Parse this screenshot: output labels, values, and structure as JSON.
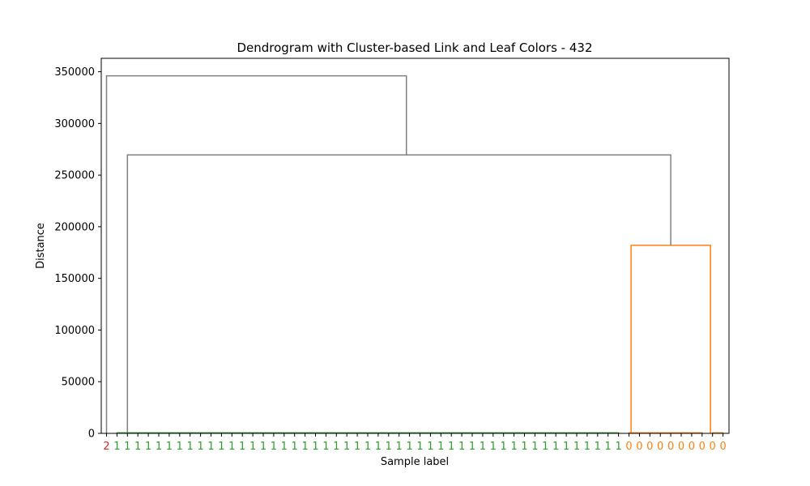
{
  "chart_data": {
    "type": "dendrogram",
    "title": "Dendrogram with Cluster-based Link and Leaf Colors - 432",
    "xlabel": "Sample label",
    "ylabel": "Distance",
    "ylim": [
      0,
      363000
    ],
    "yticks": [
      0,
      50000,
      100000,
      150000,
      200000,
      250000,
      300000,
      350000
    ],
    "ytick_labels": [
      "0",
      "50000",
      "100000",
      "150000",
      "200000",
      "250000",
      "300000",
      "350000"
    ],
    "grid": false,
    "colors": {
      "above_threshold": "#808080",
      "cluster_0": "#ff7f0e",
      "cluster_1": "#2ca02c",
      "cluster_2": "#d62728",
      "axes": "#000000",
      "background": "#ffffff"
    },
    "leaves": [
      "2",
      "1",
      "1",
      "1",
      "1",
      "1",
      "1",
      "1",
      "1",
      "1",
      "1",
      "1",
      "1",
      "1",
      "1",
      "1",
      "1",
      "1",
      "1",
      "1",
      "1",
      "1",
      "1",
      "1",
      "1",
      "1",
      "1",
      "1",
      "1",
      "1",
      "1",
      "1",
      "1",
      "1",
      "1",
      "1",
      "1",
      "1",
      "1",
      "1",
      "1",
      "1",
      "1",
      "1",
      "1",
      "1",
      "1",
      "1",
      "1",
      "1",
      "0",
      "0",
      "0",
      "0",
      "0",
      "0",
      "0",
      "0",
      "0",
      "0"
    ],
    "leaf_clusters": [
      2,
      1,
      1,
      1,
      1,
      1,
      1,
      1,
      1,
      1,
      1,
      1,
      1,
      1,
      1,
      1,
      1,
      1,
      1,
      1,
      1,
      1,
      1,
      1,
      1,
      1,
      1,
      1,
      1,
      1,
      1,
      1,
      1,
      1,
      1,
      1,
      1,
      1,
      1,
      1,
      1,
      1,
      1,
      1,
      1,
      1,
      1,
      1,
      1,
      1,
      0,
      0,
      0,
      0,
      0,
      0,
      0,
      0,
      0,
      0
    ],
    "links": [
      {
        "name": "link-cluster1-low",
        "left_pos": 1,
        "right_pos": 49,
        "left_height": 0,
        "right_height": 0,
        "height": 500,
        "color_key": "cluster_1"
      },
      {
        "name": "link-cluster0-low-a",
        "left_pos": 50,
        "right_pos": 57,
        "left_height": 0,
        "right_height": 0,
        "height": 500,
        "color_key": "cluster_0"
      },
      {
        "name": "link-cluster0-low-b",
        "left_pos": 58,
        "right_pos": 59,
        "left_height": 0,
        "right_height": 0,
        "height": 500,
        "color_key": "cluster_0"
      },
      {
        "name": "link-cluster0-top",
        "left_pos": 50.2,
        "right_pos": 57.8,
        "left_height": 0,
        "right_height": 0,
        "height": 182000,
        "color_key": "cluster_0"
      },
      {
        "name": "link-merge-1-0",
        "left_pos": 2,
        "right_pos": 54,
        "left_height": 0,
        "right_height": 182000,
        "height": 269500,
        "color_key": "above_threshold"
      },
      {
        "name": "link-root",
        "left_pos": 0,
        "right_pos": 28.7,
        "left_height": 0,
        "right_height": 269500,
        "height": 346000,
        "color_key": "above_threshold"
      }
    ]
  }
}
